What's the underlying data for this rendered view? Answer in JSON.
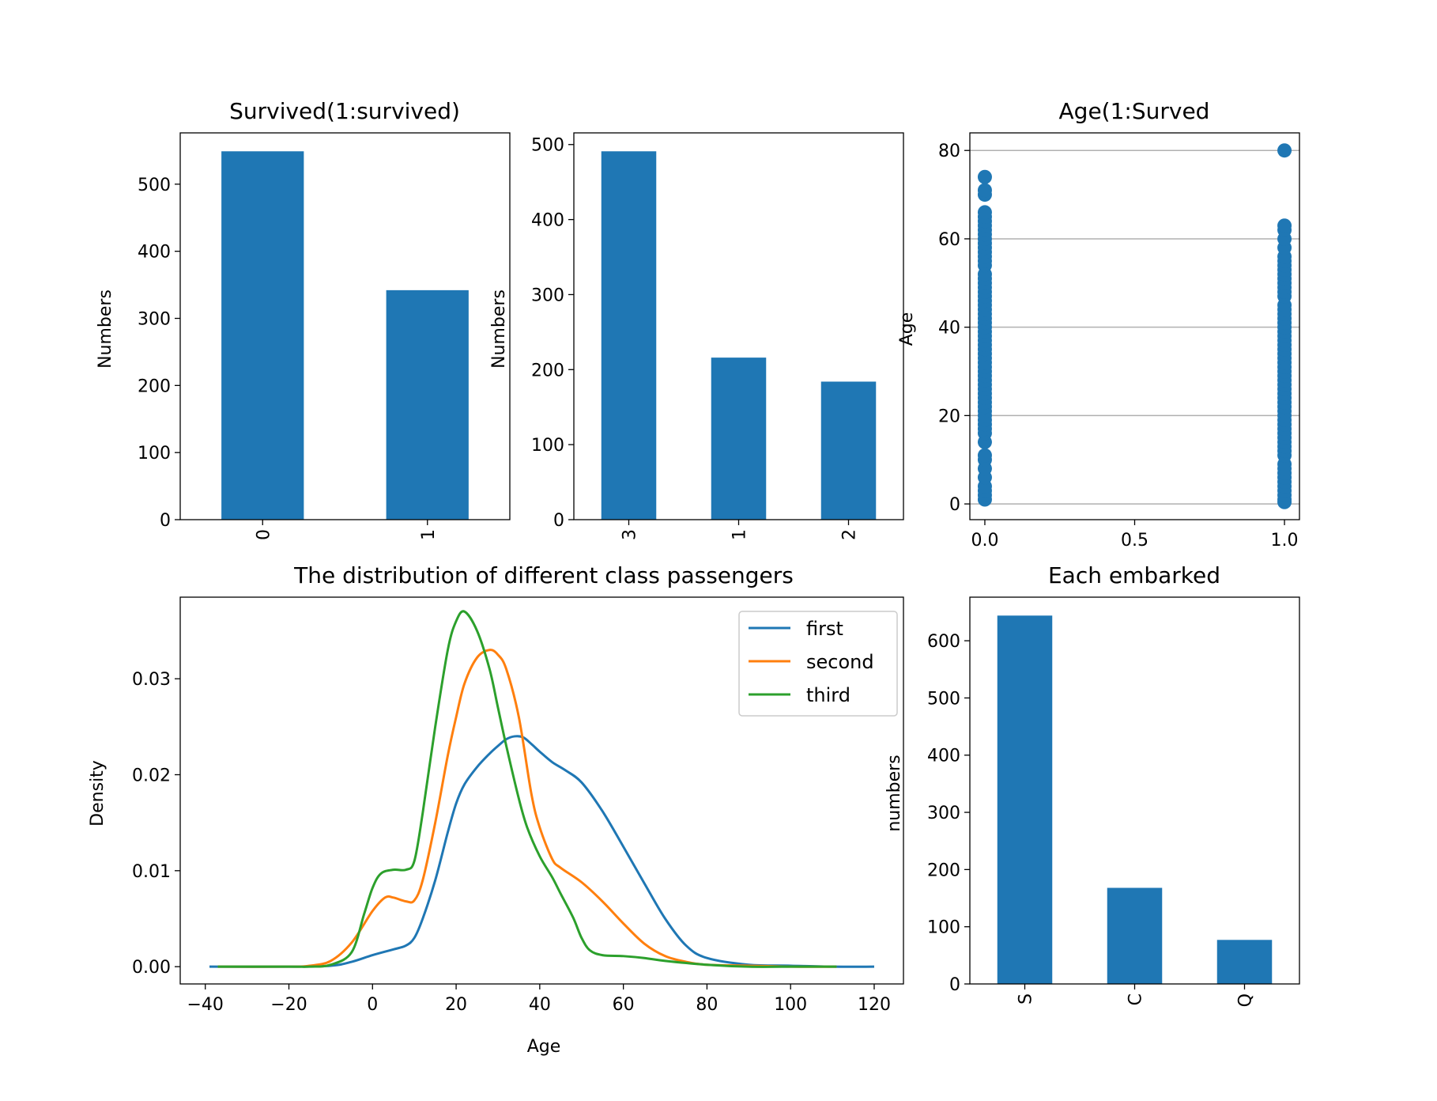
{
  "colors": {
    "bar": "#1f77b4",
    "first": "#1f77b4",
    "second": "#ff7f0e",
    "third": "#2ca02c",
    "grid": "#b0b0b0",
    "frame": "#000000"
  },
  "chart_data": [
    {
      "id": "survived",
      "type": "bar",
      "title": "Survived(1:survived)",
      "xlabel": "",
      "ylabel": "Numbers",
      "categories": [
        "0",
        "1"
      ],
      "values": [
        549,
        342
      ],
      "ylim": [
        0,
        576.45
      ],
      "yticks": [
        0,
        100,
        200,
        300,
        400,
        500
      ],
      "grid": false,
      "category_label_rotation": 90
    },
    {
      "id": "pclass",
      "type": "bar",
      "title": "",
      "xlabel": "",
      "ylabel": "Numbers",
      "categories": [
        "3",
        "1",
        "2"
      ],
      "values": [
        491,
        216,
        184
      ],
      "ylim": [
        0,
        515.55
      ],
      "yticks": [
        0,
        100,
        200,
        300,
        400,
        500
      ],
      "grid": false,
      "category_label_rotation": 90
    },
    {
      "id": "age-survived",
      "type": "scatter",
      "title": "Age(1:Surved",
      "xlabel": "",
      "ylabel": "Age",
      "xlim": [
        -0.05,
        1.05
      ],
      "ylim": [
        -3.56,
        83.98
      ],
      "xticks": [
        0.0,
        0.5,
        1.0
      ],
      "xtick_labels": [
        "0.0",
        "0.5",
        "1.0"
      ],
      "yticks": [
        0,
        20,
        40,
        60,
        80
      ],
      "grid": "y",
      "series": [
        {
          "x": 0,
          "y": [
            1,
            2,
            3,
            4,
            6,
            8,
            10,
            11,
            14,
            16,
            17,
            18,
            19,
            20,
            21,
            22,
            23,
            24,
            25,
            26,
            27,
            28,
            29,
            30,
            31,
            32,
            33,
            34,
            35,
            36,
            37,
            38,
            39,
            40,
            41,
            42,
            43,
            44,
            45,
            46,
            47,
            48,
            49,
            50,
            51,
            52,
            54,
            55,
            56,
            57,
            58,
            59,
            60,
            61,
            62,
            63,
            64,
            65,
            66,
            70,
            71,
            74
          ]
        },
        {
          "x": 1,
          "y": [
            0.42,
            1,
            2,
            3,
            4,
            5,
            6,
            7,
            8,
            9,
            11,
            12,
            13,
            14,
            15,
            16,
            17,
            18,
            19,
            20,
            21,
            22,
            23,
            24,
            25,
            26,
            27,
            28,
            29,
            30,
            31,
            32,
            33,
            34,
            35,
            36,
            37,
            38,
            39,
            40,
            41,
            42,
            43,
            44,
            45,
            47,
            48,
            49,
            50,
            51,
            52,
            53,
            54,
            55,
            56,
            58,
            60,
            62,
            63,
            80
          ]
        }
      ]
    },
    {
      "id": "class-density",
      "type": "line",
      "title": "The distribution of different class passengers",
      "xlabel": "Age",
      "ylabel": "Density",
      "xlim": [
        -46,
        127
      ],
      "ylim": [
        -0.0018,
        0.0385
      ],
      "xticks": [
        -40,
        -20,
        0,
        20,
        40,
        60,
        80,
        100,
        120
      ],
      "xtick_labels": [
        "−40",
        "−20",
        "0",
        "20",
        "40",
        "60",
        "80",
        "100",
        "120"
      ],
      "yticks": [
        0.0,
        0.01,
        0.02,
        0.03
      ],
      "ytick_labels": [
        "0.00",
        "0.01",
        "0.02",
        "0.03"
      ],
      "legend": "top-right",
      "series": [
        {
          "name": "first",
          "x": [
            -39,
            -20,
            -10,
            -5,
            0,
            5,
            8,
            10,
            12,
            15,
            18,
            20,
            22,
            25,
            28,
            30,
            32,
            34,
            36,
            38,
            40,
            43,
            46,
            50,
            55,
            60,
            65,
            70,
            75,
            80,
            90,
            100,
            110,
            120
          ],
          "y": [
            0,
            0,
            0.0001,
            0.0005,
            0.0012,
            0.0018,
            0.0022,
            0.003,
            0.005,
            0.009,
            0.014,
            0.017,
            0.019,
            0.0208,
            0.0222,
            0.023,
            0.0237,
            0.024,
            0.0239,
            0.0232,
            0.0224,
            0.0213,
            0.0205,
            0.0192,
            0.0162,
            0.0125,
            0.0087,
            0.005,
            0.0022,
            0.0009,
            0.0002,
            0.0001,
            0,
            0
          ]
        },
        {
          "name": "second",
          "x": [
            -37,
            -20,
            -15,
            -10,
            -5,
            0,
            3,
            5,
            8,
            10,
            12,
            15,
            18,
            20,
            22,
            25,
            28,
            30,
            32,
            35,
            38,
            40,
            43,
            45,
            50,
            55,
            60,
            65,
            70,
            75,
            80,
            90,
            100,
            111
          ],
          "y": [
            0,
            0,
            0.0001,
            0.0006,
            0.0025,
            0.0058,
            0.0072,
            0.0072,
            0.0068,
            0.0069,
            0.009,
            0.015,
            0.022,
            0.026,
            0.0295,
            0.0322,
            0.033,
            0.0325,
            0.031,
            0.026,
            0.018,
            0.0145,
            0.0112,
            0.0103,
            0.0088,
            0.0068,
            0.0045,
            0.0024,
            0.0011,
            0.0005,
            0.0002,
            0.0001,
            0,
            0
          ]
        },
        {
          "name": "third",
          "x": [
            -37,
            -20,
            -15,
            -10,
            -5,
            -2,
            0,
            2,
            5,
            8,
            10,
            12,
            15,
            18,
            20,
            22,
            25,
            28,
            30,
            32,
            35,
            37,
            40,
            43,
            45,
            48,
            50,
            52,
            55,
            60,
            65,
            70,
            80,
            90,
            100,
            111
          ],
          "y": [
            0,
            0,
            0,
            0.0002,
            0.0015,
            0.0055,
            0.0082,
            0.0097,
            0.0101,
            0.0101,
            0.011,
            0.016,
            0.025,
            0.033,
            0.036,
            0.037,
            0.035,
            0.031,
            0.027,
            0.023,
            0.0175,
            0.0145,
            0.0115,
            0.0093,
            0.0076,
            0.0051,
            0.003,
            0.0017,
            0.0012,
            0.0011,
            0.0009,
            0.0006,
            0.0002,
            0,
            0,
            0
          ]
        }
      ]
    },
    {
      "id": "embarked",
      "type": "bar",
      "title": "Each embarked",
      "xlabel": "",
      "ylabel": "numbers",
      "categories": [
        "S",
        "C",
        "Q"
      ],
      "values": [
        644,
        168,
        77
      ],
      "ylim": [
        0,
        676.2
      ],
      "yticks": [
        0,
        100,
        200,
        300,
        400,
        500,
        600
      ],
      "grid": false,
      "category_label_rotation": 90
    }
  ]
}
